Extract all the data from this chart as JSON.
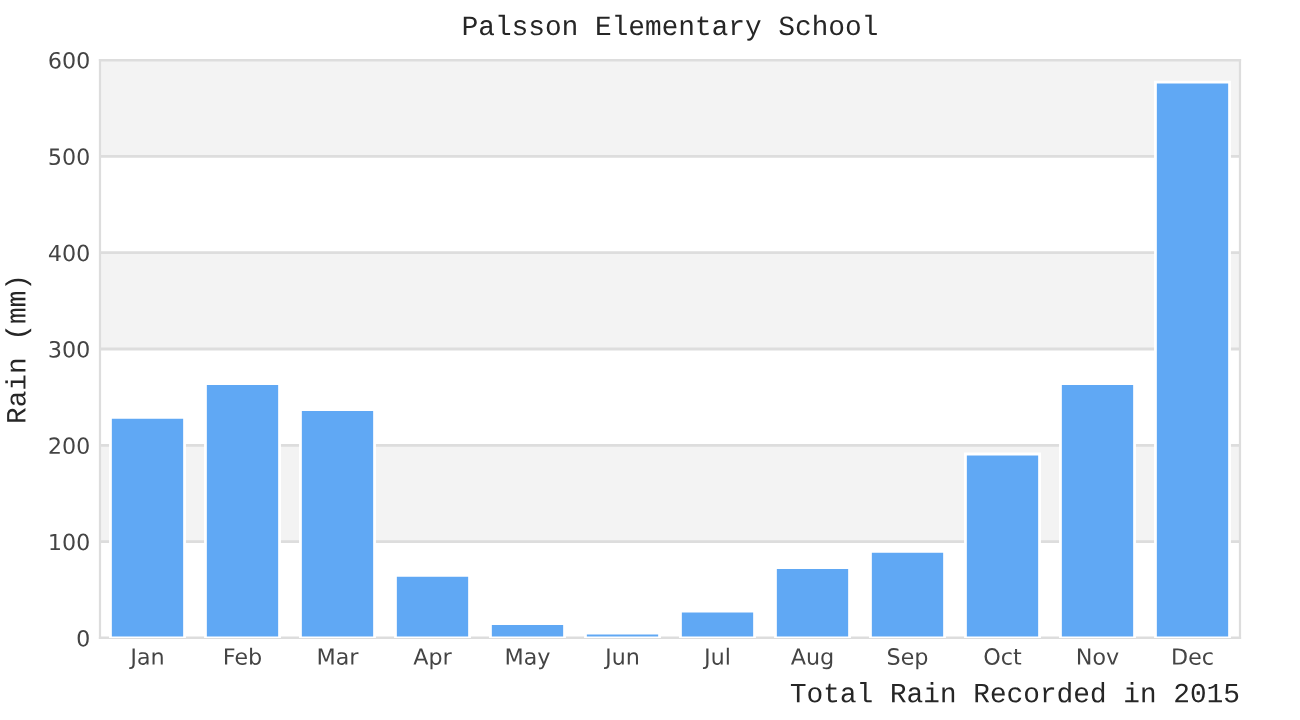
{
  "chart_data": {
    "type": "bar",
    "title": "Palsson Elementary School",
    "ylabel": "Rain (mm)",
    "categories": [
      "Jan",
      "Feb",
      "Mar",
      "Apr",
      "May",
      "Jun",
      "Jul",
      "Aug",
      "Sep",
      "Oct",
      "Nov",
      "Dec"
    ],
    "values": [
      229,
      264,
      237,
      65,
      15,
      5,
      28,
      73,
      90,
      191,
      264,
      577
    ],
    "color": "#60a8f4",
    "ylim": [
      0,
      600
    ],
    "yticks": [
      0,
      100,
      200,
      300,
      400,
      500,
      600
    ],
    "grid": "y",
    "bands": [
      {
        "axis": "y",
        "from": 100,
        "to": 200,
        "color": "#f3f3f3"
      },
      {
        "axis": "y",
        "from": 300,
        "to": 400,
        "color": "#f3f3f3"
      },
      {
        "axis": "y",
        "from": 500,
        "to": 600,
        "color": "#f3f3f3"
      }
    ],
    "annotations": [
      "Total Rain Recorded in 2015"
    ]
  }
}
